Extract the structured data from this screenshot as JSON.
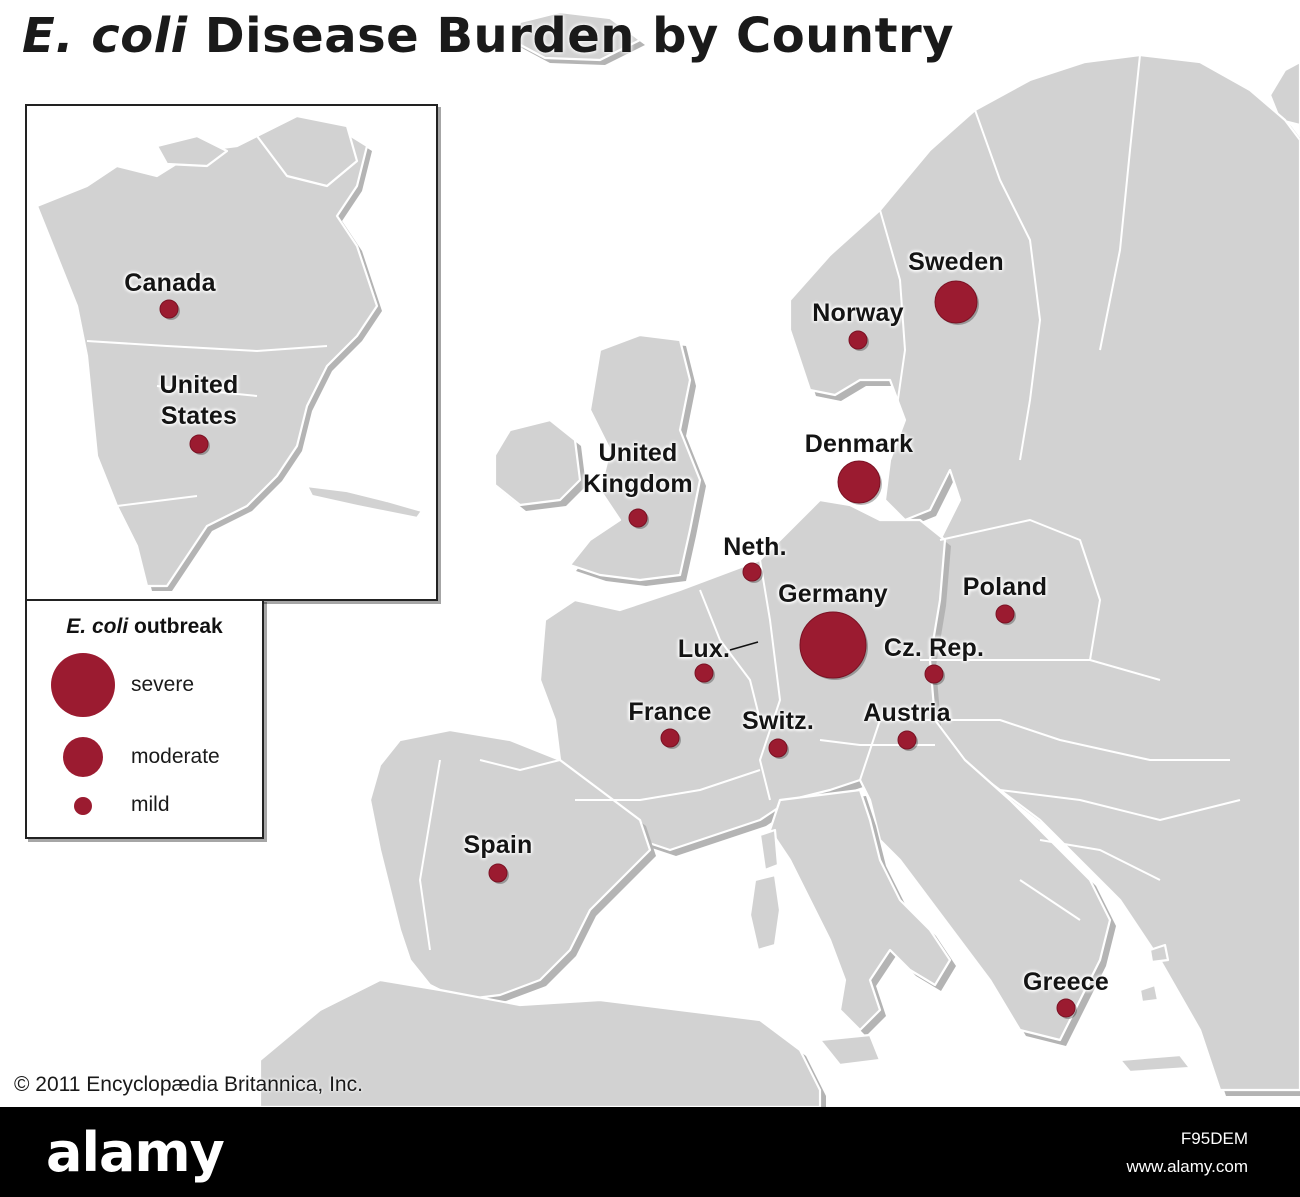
{
  "title": {
    "italic_part": "E. coli",
    "rest": "Disease Burden by Country"
  },
  "colors": {
    "marker": "#9b1b30",
    "land": "#d2d2d2",
    "water": "#ffffff",
    "border": "#ffffff"
  },
  "legend": {
    "title_italic": "E. coli",
    "title_rest": "outbreak",
    "items": [
      {
        "label": "severe",
        "severity": "severe"
      },
      {
        "label": "moderate",
        "severity": "moderate"
      },
      {
        "label": "mild",
        "severity": "mild"
      }
    ]
  },
  "inset": {
    "places": [
      {
        "name": "Canada",
        "severity": "mild"
      },
      {
        "name": "United States",
        "severity": "mild"
      }
    ]
  },
  "europe": {
    "places": [
      {
        "name": "Sweden",
        "severity": "moderate"
      },
      {
        "name": "Norway",
        "severity": "mild"
      },
      {
        "name": "Denmark",
        "severity": "moderate"
      },
      {
        "name": "United Kingdom",
        "severity": "mild"
      },
      {
        "name": "Neth.",
        "severity": "mild"
      },
      {
        "name": "Germany",
        "severity": "severe"
      },
      {
        "name": "Poland",
        "severity": "mild"
      },
      {
        "name": "Lux.",
        "severity": "mild"
      },
      {
        "name": "Cz. Rep.",
        "severity": "mild"
      },
      {
        "name": "France",
        "severity": "mild"
      },
      {
        "name": "Switz.",
        "severity": "mild"
      },
      {
        "name": "Austria",
        "severity": "mild"
      },
      {
        "name": "Spain",
        "severity": "mild"
      },
      {
        "name": "Greece",
        "severity": "mild"
      }
    ]
  },
  "copyright": "© 2011 Encyclopædia Britannica, Inc.",
  "footer": {
    "logo": "alamy",
    "image_id": "F95DEM",
    "site": "www.alamy.com"
  }
}
